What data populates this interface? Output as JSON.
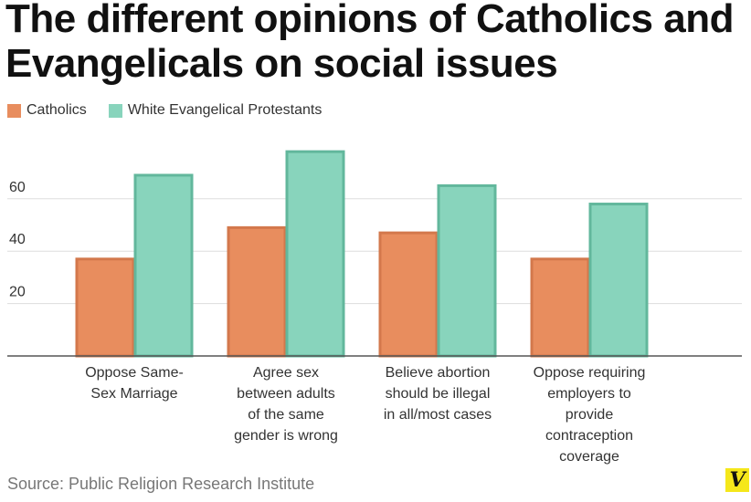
{
  "title": "The different opinions of Catholics and Evangelicals on social issues",
  "source": "Source: Public Religion Research Institute",
  "logo_text": "V",
  "colors": {
    "catholics": "#e88d5e",
    "catholics_stroke": "#d3784c",
    "evangelicals": "#88d4bc",
    "evangelicals_stroke": "#62b79c",
    "grid": "#dddddd",
    "axis": "#555555",
    "text": "#333333"
  },
  "chart_data": {
    "type": "bar",
    "title": "The different opinions of Catholics and Evangelicals on social issues",
    "xlabel": "",
    "ylabel": "",
    "ylim": [
      0,
      78
    ],
    "yticks": [
      20,
      40,
      60
    ],
    "grid": true,
    "legend_position": "top-left",
    "categories": [
      [
        "Oppose Same-",
        "Sex Marriage"
      ],
      [
        "Agree sex",
        "between adults",
        "of the same",
        "gender is wrong"
      ],
      [
        "Believe abortion",
        "should be illegal",
        "in all/most cases"
      ],
      [
        "Oppose requiring",
        "employers to",
        "provide",
        "contraception",
        "coverage"
      ]
    ],
    "series": [
      {
        "name": "Catholics",
        "values": [
          37,
          49,
          47,
          37
        ]
      },
      {
        "name": "White Evangelical Protestants",
        "values": [
          69,
          78,
          65,
          58
        ]
      }
    ]
  }
}
